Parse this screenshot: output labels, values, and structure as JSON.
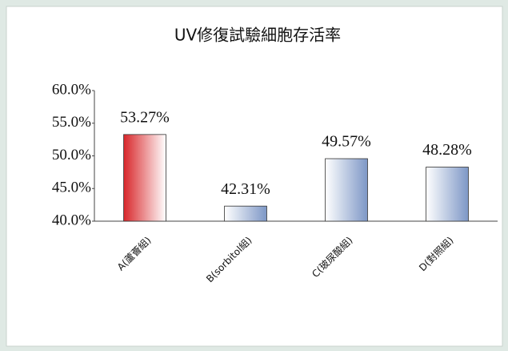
{
  "chart_data": {
    "type": "bar",
    "title": "UV修復試驗細胞存活率",
    "categories": [
      "A(蘆薈組)",
      "B(sorbitol組)",
      "C(玻尿酸組)",
      "D(對照組)"
    ],
    "values": [
      53.27,
      42.31,
      49.57,
      48.28
    ],
    "value_labels": [
      "53.27%",
      "42.31%",
      "49.57%",
      "48.28%"
    ],
    "colors": [
      "#d8262a",
      "#7d97c6",
      "#7d97c6",
      "#7d97c6"
    ],
    "ylim": [
      40,
      60
    ],
    "yticks": [
      {
        "value": 40,
        "label": "40.0%"
      },
      {
        "value": 45,
        "label": "45.0%"
      },
      {
        "value": 50,
        "label": "50.0%"
      },
      {
        "value": 55,
        "label": "55.0%"
      },
      {
        "value": 60,
        "label": "60.0%"
      }
    ]
  }
}
